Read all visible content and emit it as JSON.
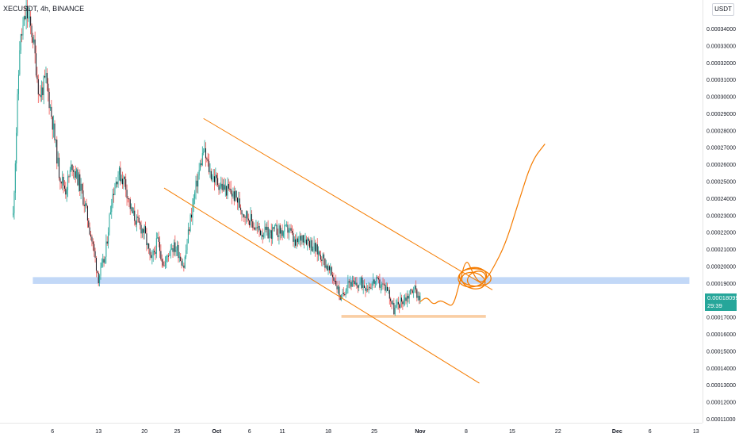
{
  "header": {
    "symbol": "XECUSDT",
    "separator": ", ",
    "interval": "4h",
    "separator2": ", ",
    "exchange": "BINANCE"
  },
  "price_axis": {
    "unit": "USDT",
    "current_price": "0.00018099",
    "countdown": "29:39",
    "ticks": [
      {
        "v": 0.00034,
        "label": "0.00034000"
      },
      {
        "v": 0.00033,
        "label": "0.00033000"
      },
      {
        "v": 0.00032,
        "label": "0.00032000"
      },
      {
        "v": 0.00031,
        "label": "0.00031000"
      },
      {
        "v": 0.0003,
        "label": "0.00030000"
      },
      {
        "v": 0.00029,
        "label": "0.00029000"
      },
      {
        "v": 0.00028,
        "label": "0.00028000"
      },
      {
        "v": 0.00027,
        "label": "0.00027000"
      },
      {
        "v": 0.00026,
        "label": "0.00026000"
      },
      {
        "v": 0.00025,
        "label": "0.00025000"
      },
      {
        "v": 0.00024,
        "label": "0.00024000"
      },
      {
        "v": 0.00023,
        "label": "0.00023000"
      },
      {
        "v": 0.00022,
        "label": "0.00022000"
      },
      {
        "v": 0.00021,
        "label": "0.00021000"
      },
      {
        "v": 0.0002,
        "label": "0.00020000"
      },
      {
        "v": 0.00019,
        "label": "0.00019000"
      },
      {
        "v": 0.00017,
        "label": "0.00017000"
      },
      {
        "v": 0.00016,
        "label": "0.00016000"
      },
      {
        "v": 0.00015,
        "label": "0.00015000"
      },
      {
        "v": 0.00014,
        "label": "0.00014000"
      },
      {
        "v": 0.00013,
        "label": "0.00013000"
      },
      {
        "v": 0.00012,
        "label": "0.00012000"
      },
      {
        "v": 0.00011,
        "label": "0.00011000"
      }
    ]
  },
  "chart_data": {
    "type": "candlestick",
    "x_unit": "date",
    "ylim": [
      0.000105,
      0.00036
    ],
    "xlim": [
      "2021-08-29",
      "2021-12-14"
    ],
    "time_ticks": [
      {
        "t": "2021-09-06",
        "label": "6"
      },
      {
        "t": "2021-09-13",
        "label": "13"
      },
      {
        "t": "2021-09-20",
        "label": "20"
      },
      {
        "t": "2021-09-25",
        "label": "25"
      },
      {
        "t": "2021-10-01",
        "label": "Oct",
        "bold": true
      },
      {
        "t": "2021-10-06",
        "label": "6"
      },
      {
        "t": "2021-10-11",
        "label": "11"
      },
      {
        "t": "2021-10-18",
        "label": "18"
      },
      {
        "t": "2021-10-25",
        "label": "25"
      },
      {
        "t": "2021-11-01",
        "label": "Nov",
        "bold": true
      },
      {
        "t": "2021-11-08",
        "label": "8"
      },
      {
        "t": "2021-11-15",
        "label": "15"
      },
      {
        "t": "2021-11-22",
        "label": "22"
      },
      {
        "t": "2021-12-01",
        "label": "Dec",
        "bold": true
      },
      {
        "t": "2021-12-06",
        "label": "6"
      },
      {
        "t": "2021-12-13",
        "label": "13"
      }
    ],
    "close_path": [
      [
        "2021-08-31",
        0.00023
      ],
      [
        "2021-09-01",
        0.00033
      ],
      [
        "2021-09-02",
        0.00035
      ],
      [
        "2021-09-03",
        0.000335
      ],
      [
        "2021-09-04",
        0.0003
      ],
      [
        "2021-09-05",
        0.00031
      ],
      [
        "2021-09-06",
        0.000285
      ],
      [
        "2021-09-07",
        0.000255
      ],
      [
        "2021-09-08",
        0.000245
      ],
      [
        "2021-09-09",
        0.00026
      ],
      [
        "2021-09-10",
        0.00025
      ],
      [
        "2021-09-11",
        0.000235
      ],
      [
        "2021-09-12",
        0.000215
      ],
      [
        "2021-09-13",
        0.000193
      ],
      [
        "2021-09-14",
        0.000205
      ],
      [
        "2021-09-15",
        0.00024
      ],
      [
        "2021-09-16",
        0.000255
      ],
      [
        "2021-09-17",
        0.00025
      ],
      [
        "2021-09-18",
        0.000232
      ],
      [
        "2021-09-19",
        0.000225
      ],
      [
        "2021-09-20",
        0.00022
      ],
      [
        "2021-09-21",
        0.000202
      ],
      [
        "2021-09-22",
        0.000215
      ],
      [
        "2021-09-23",
        0.0002
      ],
      [
        "2021-09-24",
        0.000212
      ],
      [
        "2021-09-25",
        0.00021
      ],
      [
        "2021-09-26",
        0.0002
      ],
      [
        "2021-09-27",
        0.000228
      ],
      [
        "2021-09-28",
        0.00025
      ],
      [
        "2021-09-29",
        0.000268
      ],
      [
        "2021-09-30",
        0.000255
      ],
      [
        "2021-10-01",
        0.00025
      ],
      [
        "2021-10-02",
        0.000246
      ],
      [
        "2021-10-03",
        0.000244
      ],
      [
        "2021-10-04",
        0.00024
      ],
      [
        "2021-10-05",
        0.000232
      ],
      [
        "2021-10-06",
        0.000228
      ],
      [
        "2021-10-07",
        0.000222
      ],
      [
        "2021-10-08",
        0.00022
      ],
      [
        "2021-10-09",
        0.000219
      ],
      [
        "2021-10-10",
        0.000221
      ],
      [
        "2021-10-11",
        0.00022
      ],
      [
        "2021-10-12",
        0.000222
      ],
      [
        "2021-10-13",
        0.000212
      ],
      [
        "2021-10-14",
        0.000218
      ],
      [
        "2021-10-15",
        0.000215
      ],
      [
        "2021-10-16",
        0.00021
      ],
      [
        "2021-10-17",
        0.000206
      ],
      [
        "2021-10-18",
        0.000198
      ],
      [
        "2021-10-19",
        0.000192
      ],
      [
        "2021-10-20",
        0.00018
      ],
      [
        "2021-10-21",
        0.000192
      ],
      [
        "2021-10-22",
        0.000188
      ],
      [
        "2021-10-23",
        0.00019
      ],
      [
        "2021-10-24",
        0.000188
      ],
      [
        "2021-10-25",
        0.000191
      ],
      [
        "2021-10-26",
        0.000189
      ],
      [
        "2021-10-27",
        0.000187
      ],
      [
        "2021-10-28",
        0.000174
      ],
      [
        "2021-10-29",
        0.000179
      ],
      [
        "2021-10-30",
        0.000182
      ],
      [
        "2021-10-31",
        0.000187
      ],
      [
        "2021-11-01",
        0.000181
      ]
    ],
    "support_zone": {
      "from": "2021-09-03",
      "to": "2021-12-12",
      "low": 0.0001895,
      "high": 0.0001935
    },
    "low_zone": {
      "from": "2021-10-20",
      "to": "2021-11-11",
      "low": 0.0001695,
      "high": 0.0001712
    },
    "channel_upper": [
      [
        "2021-09-29",
        0.000287
      ],
      [
        "2021-11-12",
        0.000186
      ]
    ],
    "channel_lower": [
      [
        "2021-09-23",
        0.000246
      ],
      [
        "2021-11-10",
        0.000131
      ]
    ],
    "channel_mid_fragment": [
      [
        "2021-10-12",
        0.000255
      ],
      [
        "2021-11-05",
        0.000192
      ]
    ],
    "projection": [
      [
        "2021-11-01",
        0.000179
      ],
      [
        "2021-11-02",
        0.000182
      ],
      [
        "2021-11-03",
        0.000177
      ],
      [
        "2021-11-04",
        0.00018
      ],
      [
        "2021-11-05",
        0.000178
      ],
      [
        "2021-11-06",
        0.000176
      ],
      [
        "2021-11-07",
        0.00019
      ],
      [
        "2021-11-08",
        0.000205
      ],
      [
        "2021-11-09",
        0.000196
      ],
      [
        "2021-11-10",
        0.00019
      ],
      [
        "2021-11-11",
        0.000192
      ],
      [
        "2021-11-12",
        0.000198
      ],
      [
        "2021-11-14",
        0.000213
      ],
      [
        "2021-11-16",
        0.000238
      ],
      [
        "2021-11-18",
        0.000262
      ],
      [
        "2021-11-20",
        0.000272
      ]
    ],
    "scribble_center": [
      "2021-11-09",
      0.0001925
    ],
    "colors": {
      "up": "#26a69a",
      "down": "#ef5350",
      "candle_dark": "#131722",
      "wick_up": "#26a69a",
      "wick_down": "#ef5350",
      "support": "#90b8f0",
      "low_zone": "#f8c99a",
      "drawing": "#f57c00",
      "price_label": "#26a69a"
    }
  }
}
